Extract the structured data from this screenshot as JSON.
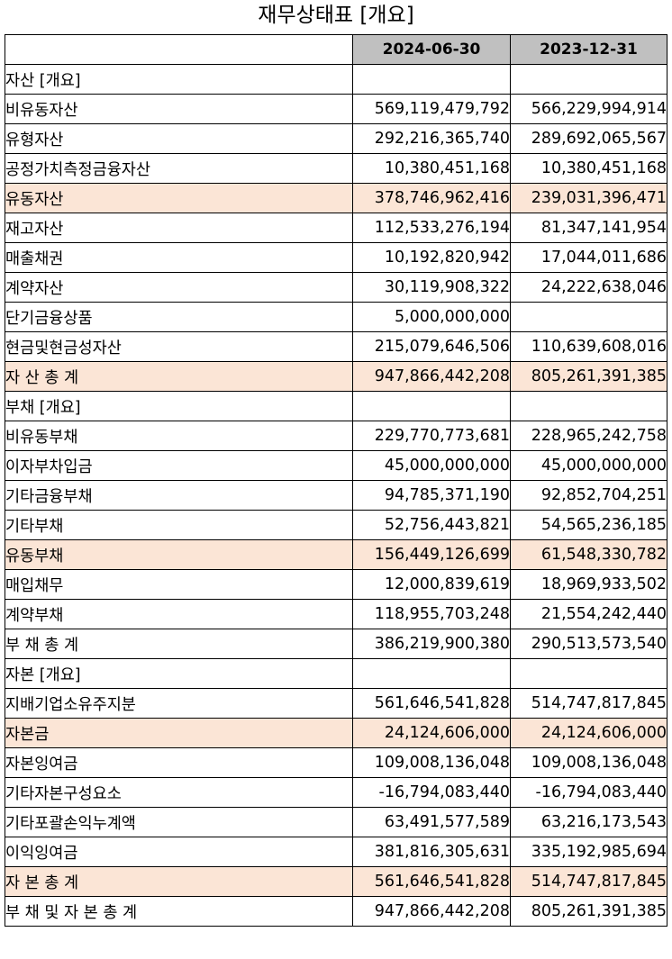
{
  "title": "재무상태표 [개요]",
  "columns": [
    "2024-06-30",
    "2023-12-31"
  ],
  "rows": [
    {
      "label": "자산 [개요]",
      "level": 0,
      "v1": "",
      "v2": "",
      "highlight": false
    },
    {
      "label": "비유동자산",
      "level": 1,
      "v1": "569,119,479,792",
      "v2": "566,229,994,914",
      "highlight": false
    },
    {
      "label": "유형자산",
      "level": 2,
      "v1": "292,216,365,740",
      "v2": "289,692,065,567",
      "highlight": false
    },
    {
      "label": "공정가치측정금융자산",
      "level": 2,
      "v1": "10,380,451,168",
      "v2": "10,380,451,168",
      "highlight": false
    },
    {
      "label": "유동자산",
      "level": 1,
      "v1": "378,746,962,416",
      "v2": "239,031,396,471",
      "highlight": true
    },
    {
      "label": "재고자산",
      "level": 2,
      "v1": "112,533,276,194",
      "v2": "81,347,141,954",
      "highlight": false
    },
    {
      "label": "매출채권",
      "level": 2,
      "v1": "10,192,820,942",
      "v2": "17,044,011,686",
      "highlight": false
    },
    {
      "label": "계약자산",
      "level": 2,
      "v1": "30,119,908,322",
      "v2": "24,222,638,046",
      "highlight": false
    },
    {
      "label": "단기금융상품",
      "level": 2,
      "v1": "5,000,000,000",
      "v2": "",
      "highlight": false
    },
    {
      "label": "현금및현금성자산",
      "level": 2,
      "v1": "215,079,646,506",
      "v2": "110,639,608,016",
      "highlight": false
    },
    {
      "label": "자 산 총 계",
      "level": 1,
      "v1": "947,866,442,208",
      "v2": "805,261,391,385",
      "highlight": true
    },
    {
      "label": "부채 [개요]",
      "level": 0,
      "v1": "",
      "v2": "",
      "highlight": false
    },
    {
      "label": "비유동부채",
      "level": 1,
      "v1": "229,770,773,681",
      "v2": "228,965,242,758",
      "highlight": false
    },
    {
      "label": "이자부차입금",
      "level": 2,
      "v1": "45,000,000,000",
      "v2": "45,000,000,000",
      "highlight": false
    },
    {
      "label": "기타금융부채",
      "level": 2,
      "v1": "94,785,371,190",
      "v2": "92,852,704,251",
      "highlight": false
    },
    {
      "label": "기타부채",
      "level": 2,
      "v1": "52,756,443,821",
      "v2": "54,565,236,185",
      "highlight": false
    },
    {
      "label": "유동부채",
      "level": 1,
      "v1": "156,449,126,699",
      "v2": "61,548,330,782",
      "highlight": true
    },
    {
      "label": "매입채무",
      "level": 2,
      "v1": "12,000,839,619",
      "v2": "18,969,933,502",
      "highlight": false
    },
    {
      "label": "계약부채",
      "level": 2,
      "v1": "118,955,703,248",
      "v2": "21,554,242,440",
      "highlight": false
    },
    {
      "label": "부 채 총 계",
      "level": 1,
      "v1": "386,219,900,380",
      "v2": "290,513,573,540",
      "highlight": false
    },
    {
      "label": "자본 [개요]",
      "level": 0,
      "v1": "",
      "v2": "",
      "highlight": false
    },
    {
      "label": "지배기업소유주지분",
      "level": 1,
      "v1": "561,646,541,828",
      "v2": "514,747,817,845",
      "highlight": false
    },
    {
      "label": "자본금",
      "level": 2,
      "v1": "24,124,606,000",
      "v2": "24,124,606,000",
      "highlight": true
    },
    {
      "label": "자본잉여금",
      "level": 2,
      "v1": "109,008,136,048",
      "v2": "109,008,136,048",
      "highlight": false
    },
    {
      "label": "기타자본구성요소",
      "level": 2,
      "v1": "-16,794,083,440",
      "v2": "-16,794,083,440",
      "highlight": false
    },
    {
      "label": "기타포괄손익누계액",
      "level": 2,
      "v1": "63,491,577,589",
      "v2": "63,216,173,543",
      "highlight": false
    },
    {
      "label": "이익잉여금",
      "level": 2,
      "v1": "381,816,305,631",
      "v2": "335,192,985,694",
      "highlight": false
    },
    {
      "label": "자 본 총 계",
      "level": 1,
      "v1": "561,646,541,828",
      "v2": "514,747,817,845",
      "highlight": true
    },
    {
      "label": "부 채 및 자 본 총 계",
      "level": 0,
      "v1": "947,866,442,208",
      "v2": "805,261,391,385",
      "highlight": false
    }
  ]
}
